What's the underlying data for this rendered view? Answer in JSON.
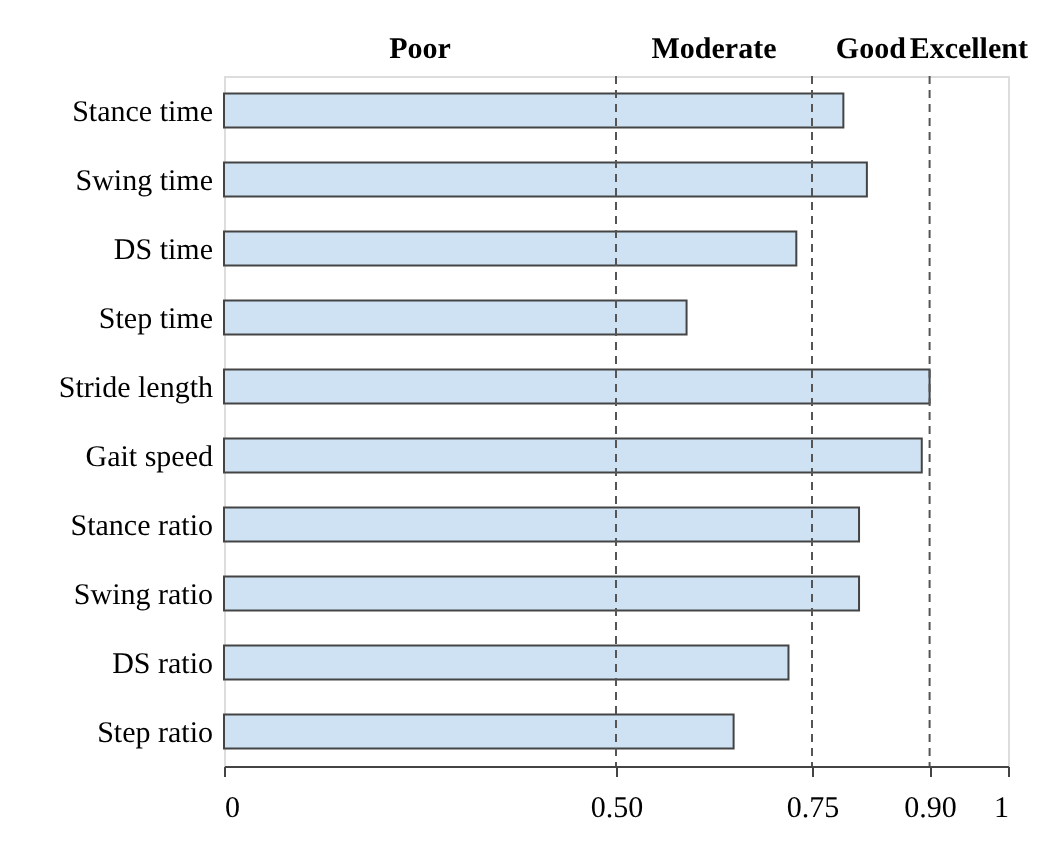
{
  "chart_data": {
    "type": "bar",
    "orientation": "horizontal",
    "categories": [
      "Stance time",
      "Swing time",
      "DS time",
      "Step time",
      "Stride length",
      "Gait speed",
      "Stance ratio",
      "Swing ratio",
      "DS ratio",
      "Step ratio"
    ],
    "values": [
      0.79,
      0.82,
      0.73,
      0.59,
      0.9,
      0.89,
      0.81,
      0.81,
      0.72,
      0.65
    ],
    "color": "#cfe2f3",
    "xlim": [
      0,
      1
    ],
    "xticks": [
      0,
      {
        "value": 0.5,
        "label": "0.50"
      },
      {
        "value": 0.75,
        "label": "0.75"
      },
      {
        "value": 0.9,
        "label": "0.90"
      },
      1
    ],
    "grid": false,
    "ref_lines": [
      {
        "axis": "x",
        "value": 0.5,
        "line_style": "dashed",
        "color": "#555555"
      },
      {
        "axis": "x",
        "value": 0.75,
        "line_style": "dashed",
        "color": "#555555"
      },
      {
        "axis": "x",
        "value": 0.9,
        "line_style": "dashed",
        "color": "#555555"
      }
    ],
    "annotations": [
      "Poor",
      "Moderate",
      "Good",
      "Excellent"
    ]
  }
}
